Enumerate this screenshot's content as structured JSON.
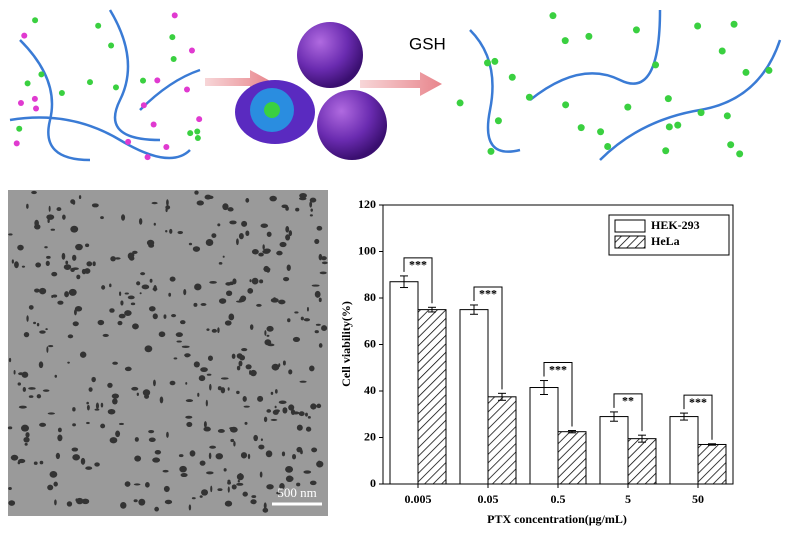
{
  "schematic": {
    "label": "GSH"
  },
  "micrograph": {
    "scale_bar": "500 nm"
  },
  "chart_data": {
    "type": "bar",
    "categories": [
      "0.005",
      "0.05",
      "0.5",
      "5",
      "50"
    ],
    "series": [
      {
        "name": "HEK-293",
        "color": "#ffffff",
        "values": [
          87,
          75,
          41.5,
          29,
          29
        ],
        "error": [
          2.5,
          2,
          3,
          2,
          1.5
        ]
      },
      {
        "name": "HeLa",
        "color": "#ffffff",
        "hatch": true,
        "values": [
          75,
          37.5,
          22.5,
          19.5,
          17
        ],
        "error": [
          1,
          1.5,
          0.5,
          1.5,
          0.3
        ]
      }
    ],
    "significance": [
      "***",
      "***",
      "***",
      "**",
      "***"
    ],
    "xlabel": "PTX concentration(μg/mL)",
    "ylabel": "Cell viability(%)",
    "ylim": [
      0,
      120
    ],
    "yticks": [
      0,
      20,
      40,
      60,
      80,
      100,
      120
    ],
    "legend": "upper right",
    "grid": false
  }
}
